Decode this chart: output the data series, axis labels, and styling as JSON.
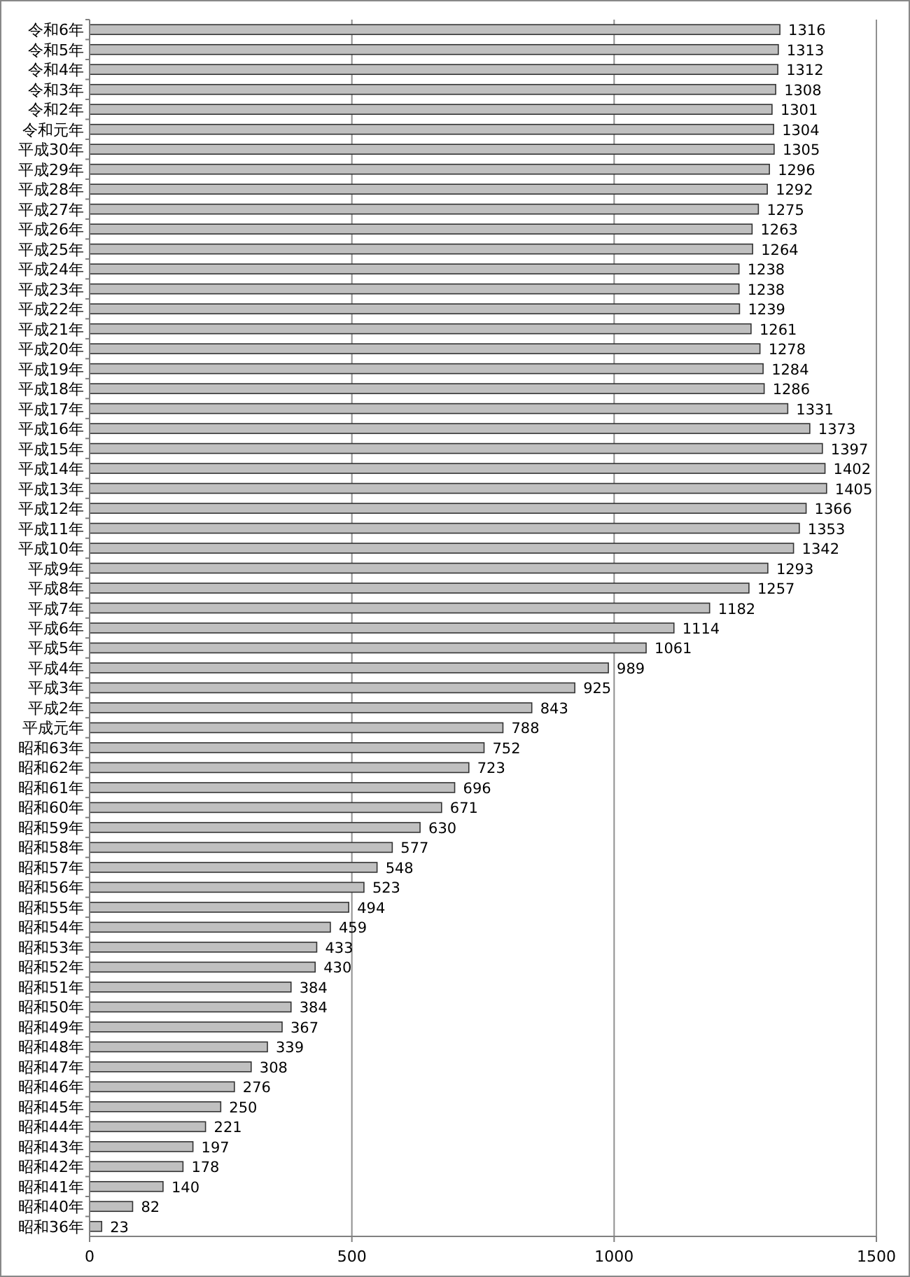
{
  "chart_data": {
    "type": "bar",
    "orientation": "horizontal",
    "categories": [
      "令和6年",
      "令和5年",
      "令和4年",
      "令和3年",
      "令和2年",
      "令和元年",
      "平成30年",
      "平成29年",
      "平成28年",
      "平成27年",
      "平成26年",
      "平成25年",
      "平成24年",
      "平成23年",
      "平成22年",
      "平成21年",
      "平成20年",
      "平成19年",
      "平成18年",
      "平成17年",
      "平成16年",
      "平成15年",
      "平成14年",
      "平成13年",
      "平成12年",
      "平成11年",
      "平成10年",
      "平成9年",
      "平成8年",
      "平成7年",
      "平成6年",
      "平成5年",
      "平成4年",
      "平成3年",
      "平成2年",
      "平成元年",
      "昭和63年",
      "昭和62年",
      "昭和61年",
      "昭和60年",
      "昭和59年",
      "昭和58年",
      "昭和57年",
      "昭和56年",
      "昭和55年",
      "昭和54年",
      "昭和53年",
      "昭和52年",
      "昭和51年",
      "昭和50年",
      "昭和49年",
      "昭和48年",
      "昭和47年",
      "昭和46年",
      "昭和45年",
      "昭和44年",
      "昭和43年",
      "昭和42年",
      "昭和41年",
      "昭和40年",
      "昭和36年"
    ],
    "values": [
      1316,
      1313,
      1312,
      1308,
      1301,
      1304,
      1305,
      1296,
      1292,
      1275,
      1263,
      1264,
      1238,
      1238,
      1239,
      1261,
      1278,
      1284,
      1286,
      1331,
      1373,
      1397,
      1402,
      1405,
      1366,
      1353,
      1342,
      1293,
      1257,
      1182,
      1114,
      1061,
      989,
      925,
      843,
      788,
      752,
      723,
      696,
      671,
      630,
      577,
      548,
      523,
      494,
      459,
      433,
      430,
      384,
      384,
      367,
      339,
      308,
      276,
      250,
      221,
      197,
      178,
      140,
      82,
      23
    ],
    "color": "#c0c0c0",
    "xlim": [
      0,
      1500
    ],
    "xticks": [
      0,
      500,
      1000,
      1500
    ],
    "grid": "x",
    "data_labels": true
  }
}
